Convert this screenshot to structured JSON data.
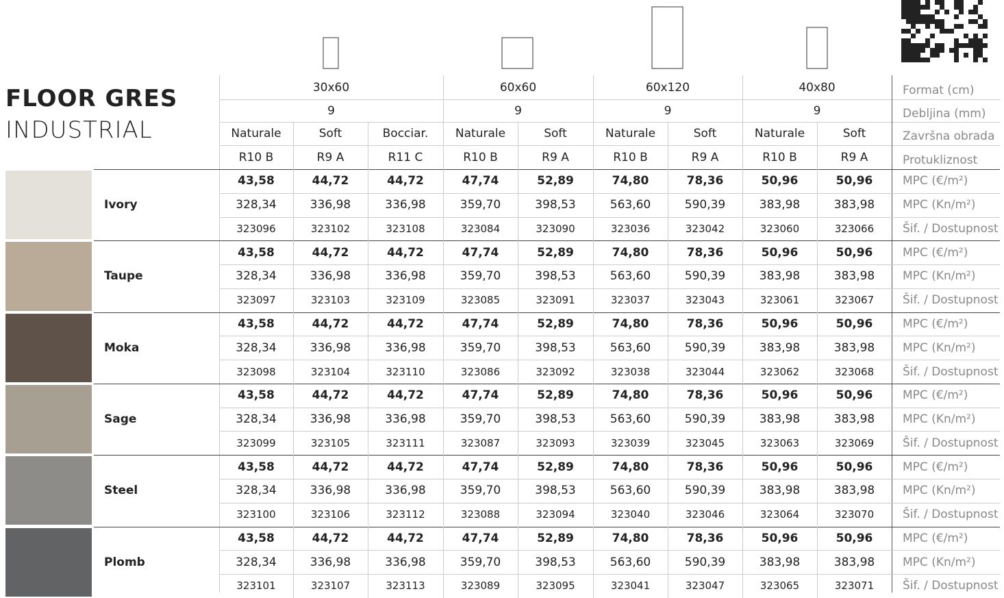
{
  "title": {
    "line1": "FLOOR GRES",
    "line2": "INDUSTRIAL"
  },
  "header": {
    "formats": [
      "30x60",
      "60x60",
      "60x120",
      "40x80"
    ],
    "thickness": [
      "9",
      "9",
      "9",
      "9"
    ],
    "finishes": [
      "Naturale",
      "Soft",
      "Bocciar.",
      "Naturale",
      "Soft",
      "Naturale",
      "Soft",
      "Naturale",
      "Soft"
    ],
    "slip": [
      "R10 B",
      "R9 A",
      "R11 C",
      "R10 B",
      "R9 A",
      "R10 B",
      "R9 A",
      "R10 B",
      "R9 A"
    ]
  },
  "row_labels": {
    "format": "Format (cm)",
    "thickness": "Debljina (mm)",
    "finish": "Završna obrada",
    "slip": "Protukliznost",
    "eur": "MPC (€/m²)",
    "kn": "MPC (Kn/m²)",
    "code": "Šif. / Dostupnost"
  },
  "colors": [
    {
      "name": "Ivory",
      "eur": [
        "43,58",
        "44,72",
        "44,72",
        "47,74",
        "52,89",
        "74,80",
        "78,36",
        "50,96",
        "50,96"
      ],
      "kn": [
        "328,34",
        "336,98",
        "336,98",
        "359,70",
        "398,53",
        "563,60",
        "590,39",
        "383,98",
        "383,98"
      ],
      "codes": [
        "323096",
        "323102",
        "323108",
        "323084",
        "323090",
        "323036",
        "323042",
        "323060",
        "323066"
      ]
    },
    {
      "name": "Taupe",
      "eur": [
        "43,58",
        "44,72",
        "44,72",
        "47,74",
        "52,89",
        "74,80",
        "78,36",
        "50,96",
        "50,96"
      ],
      "kn": [
        "328,34",
        "336,98",
        "336,98",
        "359,70",
        "398,53",
        "563,60",
        "590,39",
        "383,98",
        "383,98"
      ],
      "codes": [
        "323097",
        "323103",
        "323109",
        "323085",
        "323091",
        "323037",
        "323043",
        "323061",
        "323067"
      ]
    },
    {
      "name": "Moka",
      "eur": [
        "43,58",
        "44,72",
        "44,72",
        "47,74",
        "52,89",
        "74,80",
        "78,36",
        "50,96",
        "50,96"
      ],
      "kn": [
        "328,34",
        "336,98",
        "336,98",
        "359,70",
        "398,53",
        "563,60",
        "590,39",
        "383,98",
        "383,98"
      ],
      "codes": [
        "323098",
        "323104",
        "323110",
        "323086",
        "323092",
        "323038",
        "323044",
        "323062",
        "323068"
      ]
    },
    {
      "name": "Sage",
      "eur": [
        "43,58",
        "44,72",
        "44,72",
        "47,74",
        "52,89",
        "74,80",
        "78,36",
        "50,96",
        "50,96"
      ],
      "kn": [
        "328,34",
        "336,98",
        "336,98",
        "359,70",
        "398,53",
        "563,60",
        "590,39",
        "383,98",
        "383,98"
      ],
      "codes": [
        "323099",
        "323105",
        "323111",
        "323087",
        "323093",
        "323039",
        "323045",
        "323063",
        "323069"
      ]
    },
    {
      "name": "Steel",
      "eur": [
        "43,58",
        "44,72",
        "44,72",
        "47,74",
        "52,89",
        "74,80",
        "78,36",
        "50,96",
        "50,96"
      ],
      "kn": [
        "328,34",
        "336,98",
        "336,98",
        "359,70",
        "398,53",
        "563,60",
        "590,39",
        "383,98",
        "383,98"
      ],
      "codes": [
        "323100",
        "323106",
        "323112",
        "323088",
        "323094",
        "323040",
        "323046",
        "323064",
        "323070"
      ]
    },
    {
      "name": "Plomb",
      "eur": [
        "43,58",
        "44,72",
        "44,72",
        "47,74",
        "52,89",
        "74,80",
        "78,36",
        "50,96",
        "50,96"
      ],
      "kn": [
        "328,34",
        "336,98",
        "336,98",
        "359,70",
        "398,53",
        "563,60",
        "590,39",
        "383,98",
        "383,98"
      ],
      "codes": [
        "323101",
        "323107",
        "323113",
        "323089",
        "323095",
        "323041",
        "323047",
        "323065",
        "323071"
      ]
    }
  ]
}
